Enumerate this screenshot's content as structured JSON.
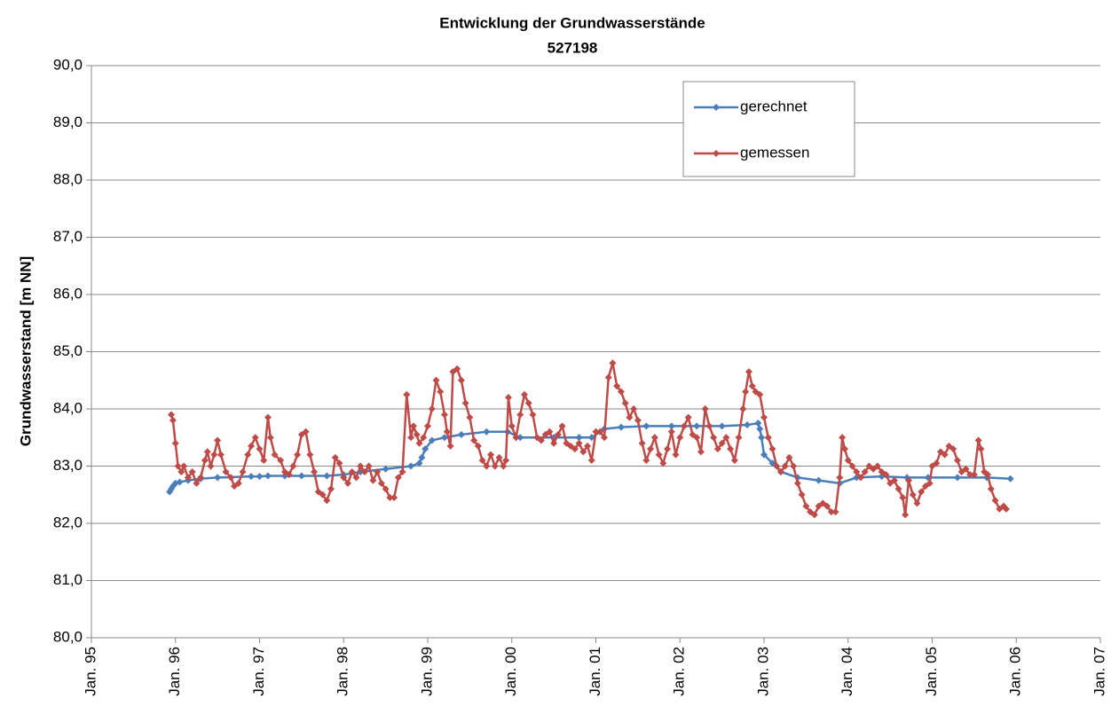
{
  "chart_data": {
    "type": "line",
    "title": "Entwicklung der Grundwasserstände",
    "subtitle": "527198",
    "y_label": "Grundwasserstand [m NN]",
    "xlim": [
      1995,
      2007
    ],
    "xticks": [
      {
        "value": 1995,
        "label": "Jan. 95"
      },
      {
        "value": 1996,
        "label": "Jan. 96"
      },
      {
        "value": 1997,
        "label": "Jan. 97"
      },
      {
        "value": 1998,
        "label": "Jan. 98"
      },
      {
        "value": 1999,
        "label": "Jan. 99"
      },
      {
        "value": 2000,
        "label": "Jan. 00"
      },
      {
        "value": 2001,
        "label": "Jan. 01"
      },
      {
        "value": 2002,
        "label": "Jan. 02"
      },
      {
        "value": 2003,
        "label": "Jan. 03"
      },
      {
        "value": 2004,
        "label": "Jan. 04"
      },
      {
        "value": 2005,
        "label": "Jan. 05"
      },
      {
        "value": 2006,
        "label": "Jan. 06"
      },
      {
        "value": 2007,
        "label": "Jan. 07"
      }
    ],
    "ylim": [
      80,
      90
    ],
    "yticks": [
      {
        "value": 80,
        "label": "80,0"
      },
      {
        "value": 81,
        "label": "81,0"
      },
      {
        "value": 82,
        "label": "82,0"
      },
      {
        "value": 83,
        "label": "83,0"
      },
      {
        "value": 84,
        "label": "84,0"
      },
      {
        "value": 85,
        "label": "85,0"
      },
      {
        "value": 86,
        "label": "86,0"
      },
      {
        "value": 87,
        "label": "87,0"
      },
      {
        "value": 88,
        "label": "88,0"
      },
      {
        "value": 89,
        "label": "89,0"
      },
      {
        "value": 90,
        "label": "90,0"
      }
    ],
    "grid": true,
    "legend": "upper-center",
    "series": [
      {
        "name": "gerechnet",
        "color": "#4a7ebb",
        "x": [
          1995.93,
          1995.95,
          1995.97,
          1996.0,
          1996.05,
          1996.15,
          1996.3,
          1996.5,
          1996.9,
          1997.0,
          1997.1,
          1997.3,
          1997.5,
          1997.8,
          1998.0,
          1998.2,
          1998.5,
          1998.8,
          1998.9,
          1998.93,
          1998.97,
          1999.05,
          1999.2,
          1999.4,
          1999.7,
          1999.95,
          2000.1,
          2000.3,
          2000.5,
          2000.8,
          2000.95,
          2001.1,
          2001.3,
          2001.6,
          2001.9,
          2002.2,
          2002.5,
          2002.8,
          2002.93,
          2002.95,
          2002.97,
          2003.0,
          2003.1,
          2003.2,
          2003.4,
          2003.65,
          2003.9,
          2004.1,
          2004.4,
          2004.7,
          2004.95,
          2005.3,
          2005.65,
          2005.93
        ],
        "values": [
          82.55,
          82.6,
          82.65,
          82.7,
          82.72,
          82.75,
          82.78,
          82.8,
          82.82,
          82.82,
          82.83,
          82.83,
          82.83,
          82.83,
          82.85,
          82.9,
          82.95,
          83.0,
          83.05,
          83.15,
          83.3,
          83.45,
          83.5,
          83.55,
          83.6,
          83.6,
          83.5,
          83.5,
          83.5,
          83.5,
          83.5,
          83.65,
          83.68,
          83.7,
          83.7,
          83.7,
          83.7,
          83.72,
          83.75,
          83.65,
          83.5,
          83.2,
          83.05,
          82.9,
          82.8,
          82.75,
          82.7,
          82.8,
          82.82,
          82.8,
          82.8,
          82.8,
          82.8,
          82.78
        ]
      },
      {
        "name": "gemessen",
        "color": "#be4b48",
        "x": [
          1995.95,
          1995.97,
          1996.0,
          1996.03,
          1996.07,
          1996.1,
          1996.15,
          1996.2,
          1996.25,
          1996.3,
          1996.35,
          1996.38,
          1996.42,
          1996.46,
          1996.5,
          1996.54,
          1996.6,
          1996.66,
          1996.7,
          1996.75,
          1996.8,
          1996.86,
          1996.9,
          1996.95,
          1997.0,
          1997.05,
          1997.1,
          1997.13,
          1997.18,
          1997.25,
          1997.3,
          1997.35,
          1997.4,
          1997.45,
          1997.5,
          1997.55,
          1997.6,
          1997.65,
          1997.7,
          1997.75,
          1997.8,
          1997.85,
          1997.9,
          1997.95,
          1998.0,
          1998.05,
          1998.1,
          1998.15,
          1998.2,
          1998.25,
          1998.3,
          1998.35,
          1998.4,
          1998.45,
          1998.5,
          1998.55,
          1998.6,
          1998.65,
          1998.7,
          1998.75,
          1998.8,
          1998.83,
          1998.87,
          1998.9,
          1998.95,
          1999.0,
          1999.05,
          1999.1,
          1999.15,
          1999.2,
          1999.23,
          1999.27,
          1999.3,
          1999.35,
          1999.4,
          1999.45,
          1999.5,
          1999.55,
          1999.6,
          1999.65,
          1999.7,
          1999.75,
          1999.8,
          1999.85,
          1999.9,
          1999.93,
          1999.96,
          2000.0,
          2000.05,
          2000.1,
          2000.15,
          2000.2,
          2000.25,
          2000.3,
          2000.35,
          2000.4,
          2000.45,
          2000.5,
          2000.55,
          2000.6,
          2000.65,
          2000.7,
          2000.75,
          2000.8,
          2000.85,
          2000.9,
          2000.95,
          2001.0,
          2001.05,
          2001.1,
          2001.15,
          2001.2,
          2001.25,
          2001.3,
          2001.35,
          2001.4,
          2001.45,
          2001.5,
          2001.55,
          2001.6,
          2001.65,
          2001.7,
          2001.75,
          2001.8,
          2001.85,
          2001.9,
          2001.95,
          2002.0,
          2002.05,
          2002.1,
          2002.15,
          2002.2,
          2002.25,
          2002.3,
          2002.35,
          2002.4,
          2002.45,
          2002.5,
          2002.55,
          2002.6,
          2002.65,
          2002.7,
          2002.75,
          2002.78,
          2002.82,
          2002.86,
          2002.9,
          2002.95,
          2003.0,
          2003.05,
          2003.1,
          2003.15,
          2003.2,
          2003.25,
          2003.3,
          2003.35,
          2003.4,
          2003.45,
          2003.5,
          2003.55,
          2003.6,
          2003.65,
          2003.7,
          2003.75,
          2003.8,
          2003.85,
          2003.9,
          2003.93,
          2003.96,
          2004.0,
          2004.05,
          2004.1,
          2004.15,
          2004.2,
          2004.25,
          2004.3,
          2004.35,
          2004.4,
          2004.45,
          2004.5,
          2004.55,
          2004.6,
          2004.65,
          2004.68,
          2004.72,
          2004.77,
          2004.82,
          2004.87,
          2004.92,
          2004.97,
          2005.0,
          2005.05,
          2005.1,
          2005.15,
          2005.2,
          2005.25,
          2005.3,
          2005.35,
          2005.4,
          2005.45,
          2005.5,
          2005.55,
          2005.58,
          2005.62,
          2005.66,
          2005.7,
          2005.75,
          2005.8,
          2005.85,
          2005.88
        ],
        "values": [
          83.9,
          83.8,
          83.4,
          83.0,
          82.9,
          83.0,
          82.8,
          82.9,
          82.7,
          82.8,
          83.1,
          83.25,
          83.0,
          83.2,
          83.45,
          83.2,
          82.9,
          82.8,
          82.65,
          82.7,
          82.9,
          83.2,
          83.35,
          83.5,
          83.3,
          83.1,
          83.85,
          83.5,
          83.2,
          83.1,
          82.9,
          82.85,
          83.0,
          83.2,
          83.55,
          83.6,
          83.2,
          82.9,
          82.55,
          82.5,
          82.4,
          82.6,
          83.15,
          83.05,
          82.8,
          82.7,
          82.9,
          82.8,
          83.0,
          82.9,
          83.0,
          82.75,
          82.9,
          82.7,
          82.6,
          82.45,
          82.45,
          82.8,
          82.9,
          84.25,
          83.5,
          83.7,
          83.55,
          83.4,
          83.5,
          83.7,
          84.0,
          84.5,
          84.3,
          83.9,
          83.6,
          83.35,
          84.65,
          84.7,
          84.5,
          84.1,
          83.85,
          83.45,
          83.35,
          83.1,
          83.0,
          83.2,
          83.0,
          83.15,
          83.0,
          83.1,
          84.2,
          83.7,
          83.5,
          83.9,
          84.25,
          84.1,
          83.9,
          83.5,
          83.45,
          83.55,
          83.6,
          83.4,
          83.55,
          83.7,
          83.4,
          83.35,
          83.3,
          83.4,
          83.25,
          83.35,
          83.1,
          83.6,
          83.6,
          83.5,
          84.55,
          84.8,
          84.4,
          84.3,
          84.1,
          83.85,
          84.0,
          83.8,
          83.4,
          83.1,
          83.3,
          83.5,
          83.2,
          83.05,
          83.3,
          83.6,
          83.2,
          83.5,
          83.7,
          83.85,
          83.55,
          83.5,
          83.25,
          84.0,
          83.7,
          83.5,
          83.3,
          83.4,
          83.5,
          83.3,
          83.1,
          83.5,
          84.0,
          84.3,
          84.65,
          84.4,
          84.3,
          84.25,
          83.85,
          83.5,
          83.3,
          83.0,
          82.9,
          83.0,
          83.15,
          83.0,
          82.7,
          82.5,
          82.3,
          82.2,
          82.15,
          82.3,
          82.35,
          82.3,
          82.2,
          82.2,
          82.8,
          83.5,
          83.3,
          83.1,
          83.0,
          82.9,
          82.8,
          82.9,
          83.0,
          82.95,
          83.0,
          82.9,
          82.85,
          82.7,
          82.75,
          82.6,
          82.45,
          82.15,
          82.75,
          82.5,
          82.35,
          82.55,
          82.65,
          82.7,
          83.0,
          83.05,
          83.25,
          83.2,
          83.35,
          83.3,
          83.1,
          82.9,
          82.95,
          82.85,
          82.85,
          83.45,
          83.3,
          82.9,
          82.85,
          82.6,
          82.4,
          82.25,
          82.3,
          82.25
        ]
      }
    ]
  }
}
